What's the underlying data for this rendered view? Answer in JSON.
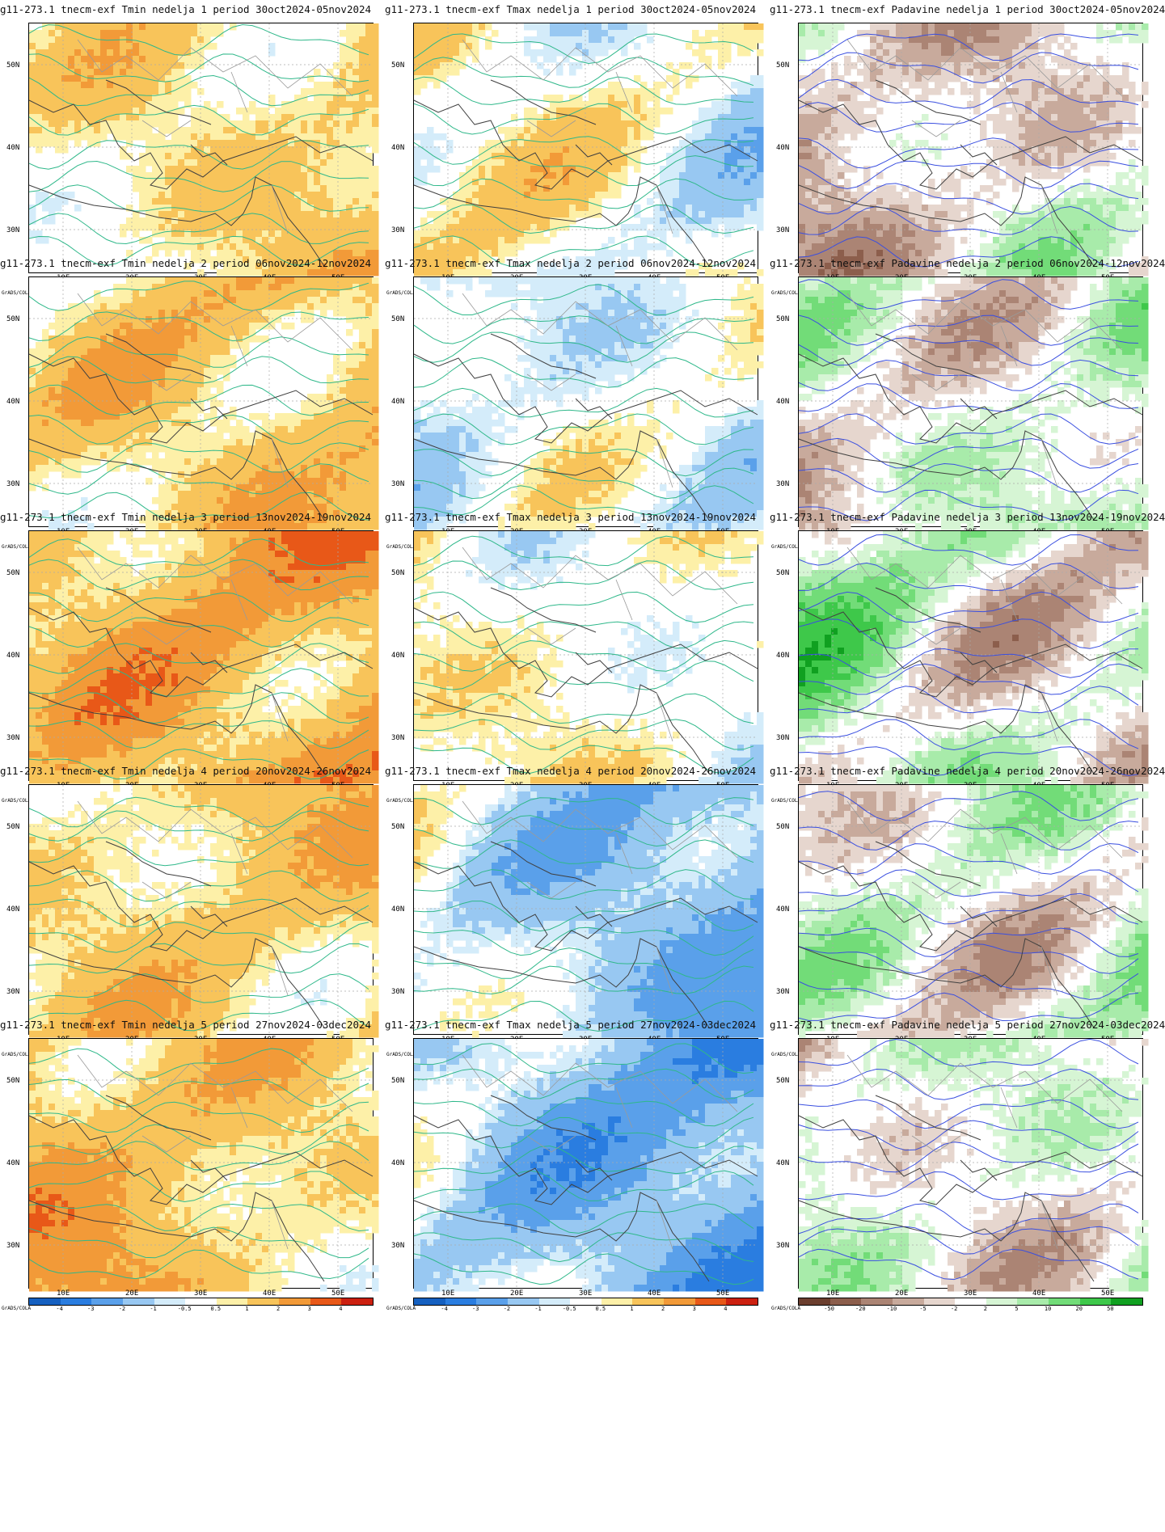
{
  "panels": [
    {
      "title": "g11-273.1 tnecm-exf Tmin nedelja 1 period 30oct2024-05nov2024",
      "var": "t",
      "palette": "temp",
      "base": 0.85,
      "trend": 0.25,
      "seed": 1
    },
    {
      "title": "g11-273.1 tnecm-exf Tmax nedelja 1 period 30oct2024-05nov2024",
      "var": "t",
      "palette": "temp",
      "base": 0.1,
      "trend": -0.3,
      "seed": 2
    },
    {
      "title": "g11-273.1 tnecm-exf Padavine nedelja 1 period 30oct2024-05nov2024",
      "var": "p",
      "palette": "prec",
      "base": -0.3,
      "trend": 0.2,
      "seed": 3
    },
    {
      "title": "g11-273.1 tnecm-exf Tmin nedelja 2 period 06nov2024-12nov2024",
      "var": "t",
      "palette": "temp",
      "base": 1.2,
      "trend": 0.3,
      "seed": 4
    },
    {
      "title": "g11-273.1 tnecm-exf Tmax nedelja 2 period 06nov2024-12nov2024",
      "var": "t",
      "palette": "temp",
      "base": -0.3,
      "trend": 0.1,
      "seed": 5
    },
    {
      "title": "g11-273.1 tnecm-exf Padavine nedelja 2 period 06nov2024-12nov2024",
      "var": "p",
      "palette": "prec",
      "base": 0.15,
      "trend": 0.2,
      "seed": 6
    },
    {
      "title": "g11-273.1 tnecm-exf Tmin nedelja 3 period 13nov2024-19nov2024",
      "var": "t",
      "palette": "temp",
      "base": 1.8,
      "trend": 0.3,
      "seed": 7
    },
    {
      "title": "g11-273.1 tnecm-exf Tmax nedelja 3 period 13nov2024-19nov2024",
      "var": "t",
      "palette": "temp",
      "base": 0.2,
      "trend": -0.2,
      "seed": 8
    },
    {
      "title": "g11-273.1 tnecm-exf Padavine nedelja 3 period 13nov2024-19nov2024",
      "var": "p",
      "palette": "prec",
      "base": 0.2,
      "trend": -0.3,
      "seed": 9
    },
    {
      "title": "g11-273.1 tnecm-exf Tmin nedelja 4 period 20nov2024-26nov2024",
      "var": "t",
      "palette": "temp",
      "base": 1.1,
      "trend": 0.2,
      "seed": 10
    },
    {
      "title": "g11-273.1 tnecm-exf Tmax nedelja 4 period 20nov2024-26nov2024",
      "var": "t",
      "palette": "temp",
      "base": -1.2,
      "trend": -0.6,
      "seed": 11
    },
    {
      "title": "g11-273.1 tnecm-exf Padavine nedelja 4 period 20nov2024-26nov2024",
      "var": "p",
      "palette": "prec",
      "base": 0.15,
      "trend": 0.1,
      "seed": 12
    },
    {
      "title": "g11-273.1 tnecm-exf Tmin nedelja 5 period 27nov2024-03dec2024",
      "var": "t",
      "palette": "temp",
      "base": 1.3,
      "trend": -0.4,
      "seed": 13
    },
    {
      "title": "g11-273.1 tnecm-exf Tmax nedelja 5 period 27nov2024-03dec2024",
      "var": "t",
      "palette": "temp",
      "base": -1.6,
      "trend": -0.6,
      "seed": 14
    },
    {
      "title": "g11-273.1 tnecm-exf Padavine nedelja 5 period 27nov2024-03dec2024",
      "var": "p",
      "palette": "prec",
      "base": 0.1,
      "trend": 0.0,
      "seed": 15
    }
  ],
  "lat_labels": [
    "50N",
    "40N",
    "30N"
  ],
  "lon_labels": [
    "10E",
    "20E",
    "30E",
    "40E",
    "50E"
  ],
  "colorbar_credit": "GrADS/COLA",
  "temp_ticks": [
    "-4",
    "-3",
    "-2",
    "-1",
    "-0.5",
    "0.5",
    "1",
    "2",
    "3",
    "4"
  ],
  "prec_ticks": [
    "-50",
    "-20",
    "-10",
    "-5",
    "-2",
    "2",
    "5",
    "10",
    "20",
    "50"
  ],
  "temp_colors": [
    "#1560c0",
    "#2a7de0",
    "#5aa0ea",
    "#98c8f2",
    "#d4ecfa",
    "#ffffff",
    "#fdf0a8",
    "#f8c45a",
    "#f29a38",
    "#e85818",
    "#cc2010"
  ],
  "prec_colors": [
    "#6b3e2e",
    "#8c5e4c",
    "#ab8474",
    "#c8aa9c",
    "#e6d6ce",
    "#ffffff",
    "#d6f5d4",
    "#a8ebaa",
    "#72dc78",
    "#3ec84a",
    "#10a020"
  ],
  "contour_colors": {
    "temp": "#2fb88a",
    "prec": "#3a4fe0",
    "coast": "#404040",
    "border": "#9a9a9a"
  }
}
